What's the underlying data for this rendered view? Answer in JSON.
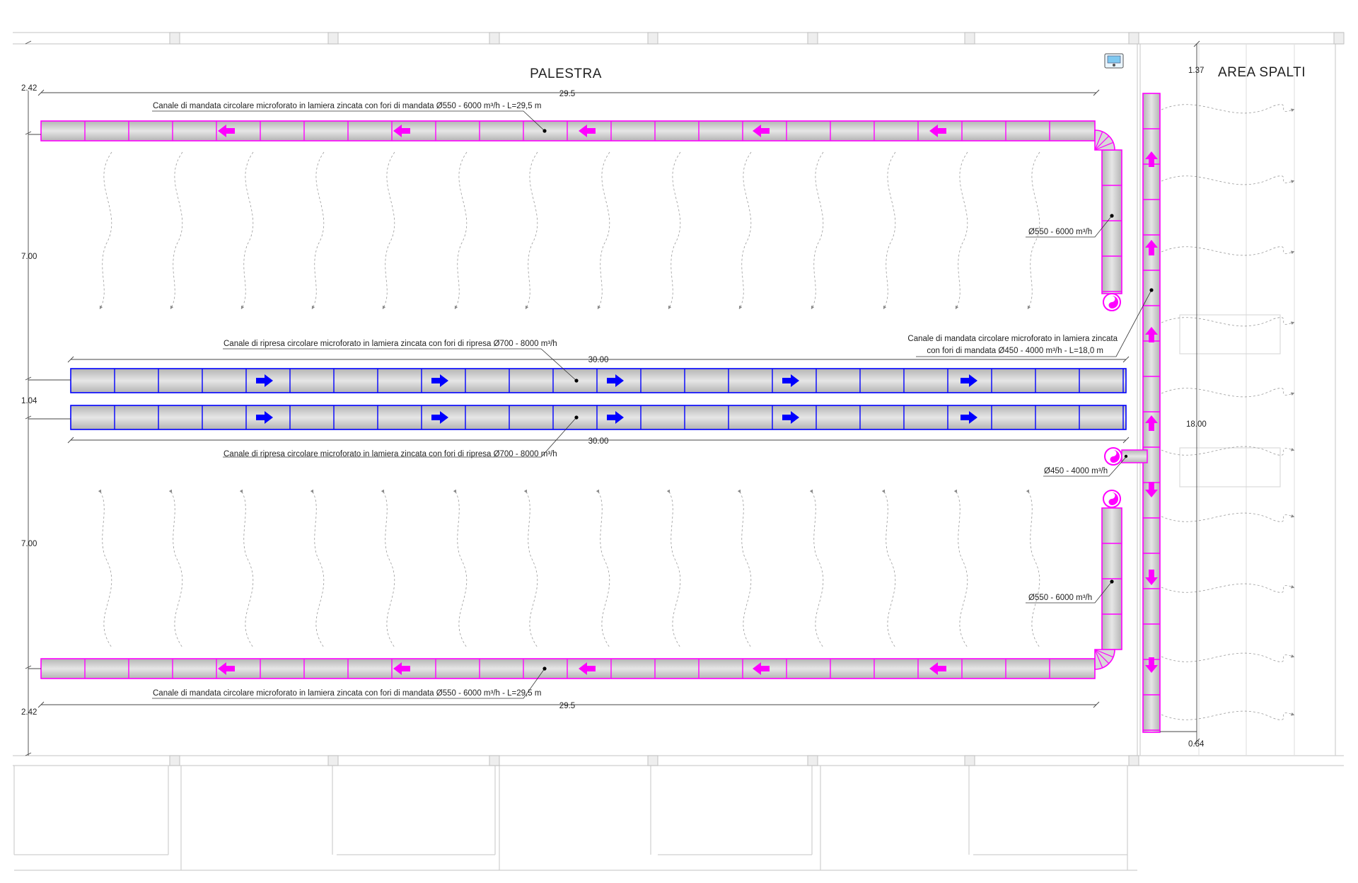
{
  "rooms": {
    "palestra": "PALESTRA",
    "area_spalti": "AREA SPALTI"
  },
  "notes": {
    "supply_top": "Canale di mandata circolare microforato in lamiera zincata con fori di mandata Ø550 - 6000 m³/h - L=29,5 m",
    "supply_bottom": "Canale di mandata circolare microforato in lamiera zincata con fori di mandata Ø550 - 6000 m³/h - L=29,5 m",
    "return_top": "Canale di ripresa circolare microforato in lamiera zincata con fori di ripresa Ø700 - 8000 m³/h",
    "return_bottom": "Canale di ripresa circolare microforato in lamiera zincata con fori di ripresa Ø700 - 8000 m³/h",
    "riser_line1": "Canale di mandata circolare microforato in lamiera zincata",
    "riser_line2": "con fori di mandata Ø450 - 4000 m³/h - L=18,0 m",
    "branch_top": "Ø550 - 6000 m³/h",
    "branch_bottom": "Ø550 - 6000 m³/h",
    "inlet": "Ø450 - 4000 m³/h"
  },
  "dimensions": {
    "top_margin": "2.42",
    "upper_zone": "7.00",
    "between_returns": "1.04",
    "lower_zone": "7.00",
    "bottom_margin": "2.42",
    "supply_length_top": "29.5",
    "supply_length_bottom": "29.5",
    "return_length_top": "30.00",
    "return_length_bottom": "30.00",
    "riser_offset_top": "1.37",
    "riser_length": "18.00",
    "riser_offset_bottom": "0.64"
  },
  "colors": {
    "supply_duct": "#ff00ff",
    "return_duct": "#0000ff",
    "duct_fill": "#cccccc",
    "arrow_supply": "#ff00ff",
    "arrow_return": "#0000ff",
    "wall_line": "#c8c8c8",
    "dimension_line": "#444444",
    "airflow_trace": "#9a9a9a"
  },
  "icons": [
    "thermostat-icon",
    "fan-icon",
    "arrow-left-icon",
    "arrow-right-icon",
    "arrow-up-icon",
    "arrow-down-icon"
  ]
}
